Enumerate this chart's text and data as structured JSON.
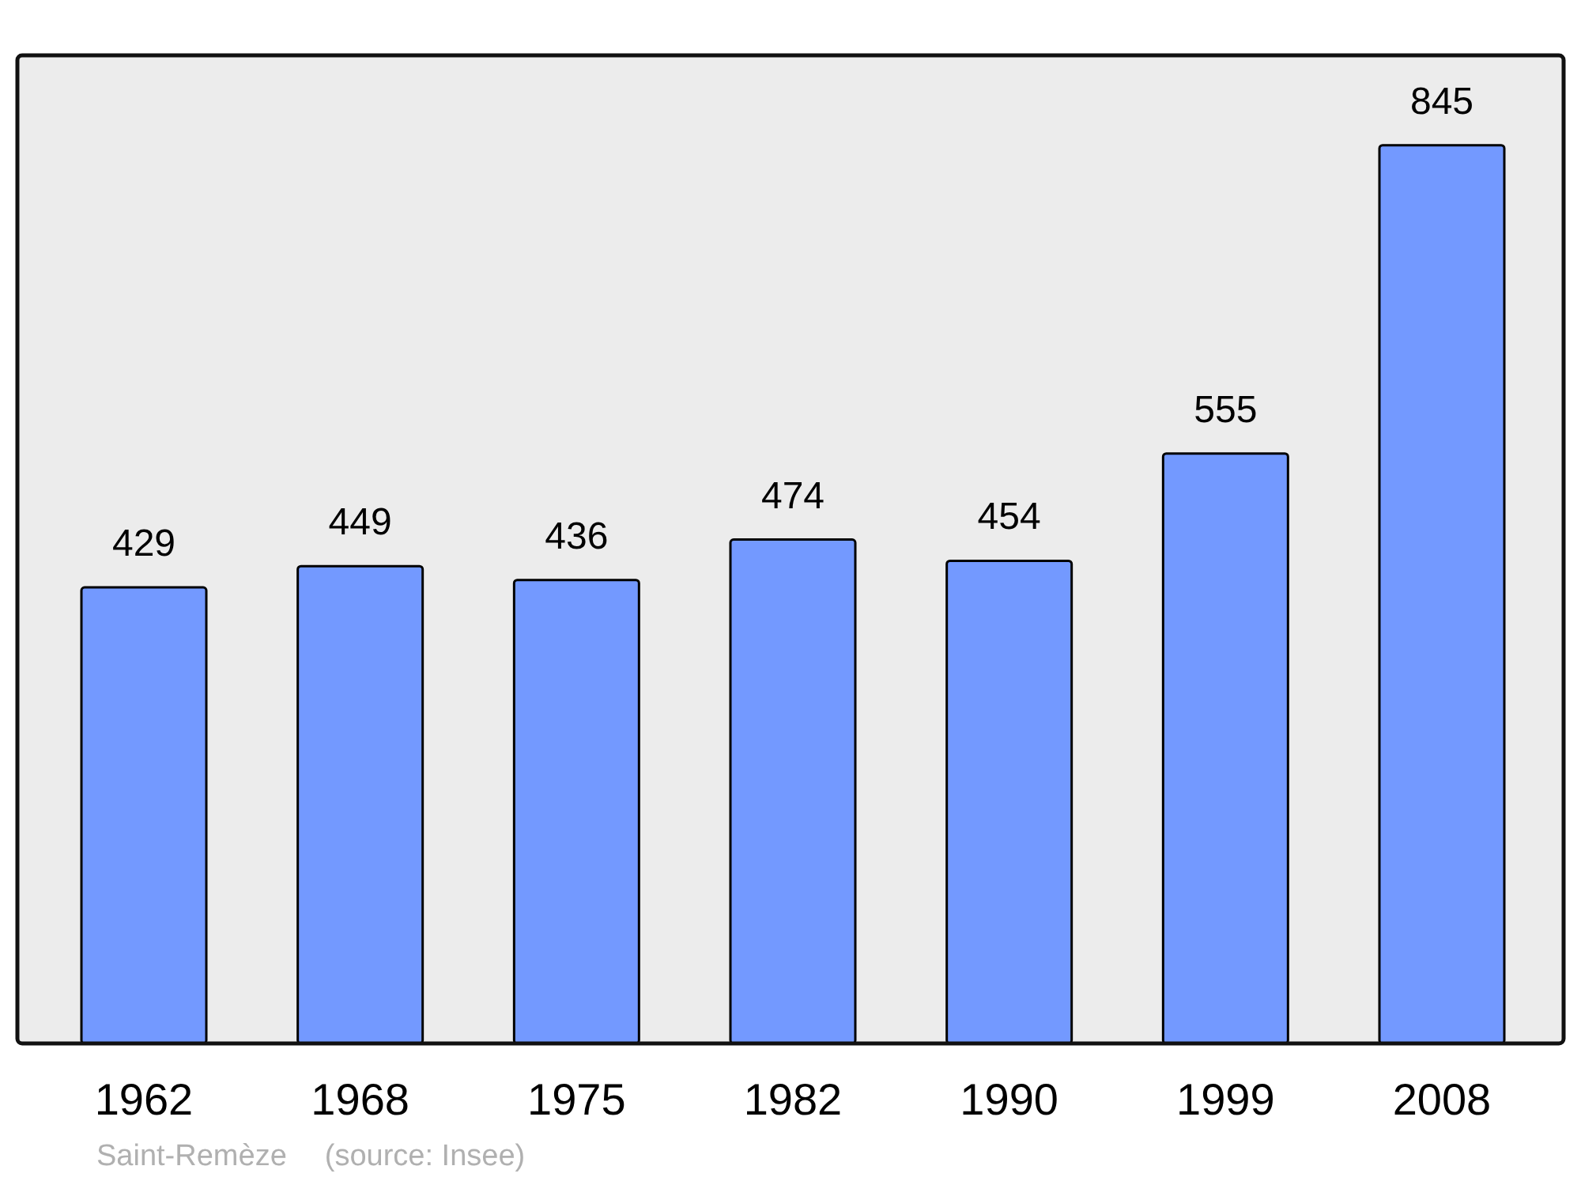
{
  "chart_data": {
    "type": "bar",
    "categories": [
      "1962",
      "1968",
      "1975",
      "1982",
      "1990",
      "1999",
      "2008"
    ],
    "values": [
      429,
      449,
      436,
      474,
      454,
      555,
      845
    ],
    "color": "#7399ff",
    "data_labels": true,
    "annotations": [
      "Saint-Remèze",
      "(source: Insee)"
    ]
  }
}
